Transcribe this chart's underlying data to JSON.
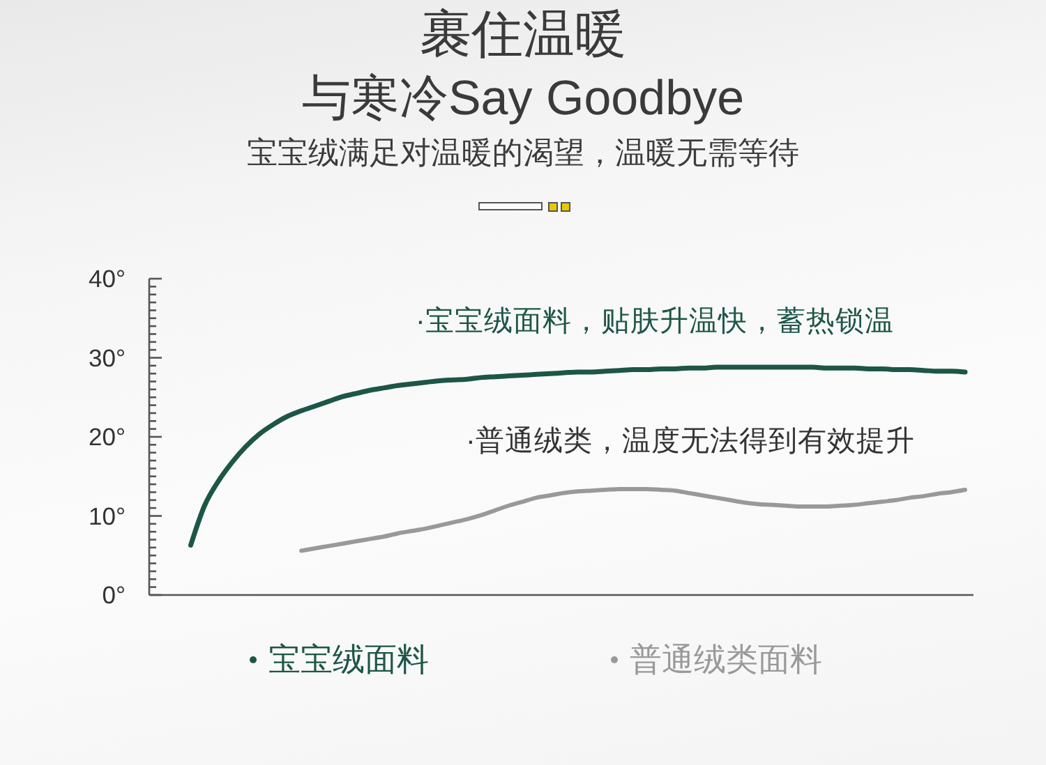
{
  "chart_data": {
    "type": "line",
    "title": "裹住温暖",
    "subtitle": "与寒冷Say Goodbye",
    "annotations": [
      "宝宝绒满足对温暖的渴望，温暖无需等待",
      "·宝宝绒面料，贴肤升温快，蓄热锁温",
      "·普通绒类，温度无法得到有效提升"
    ],
    "categories": [
      null,
      null,
      null,
      null,
      null,
      null,
      null,
      null,
      null,
      null,
      null,
      null,
      null,
      null,
      null,
      null,
      null,
      null,
      null,
      null,
      null,
      null,
      null,
      null,
      null,
      null,
      null,
      null,
      null,
      null,
      null,
      null,
      null,
      null,
      null,
      null,
      null,
      null,
      null,
      null,
      null,
      null,
      null,
      null,
      null,
      null,
      null,
      null,
      null,
      null,
      null,
      null,
      null,
      null,
      null,
      null,
      null,
      null,
      null,
      null
    ],
    "series": [
      {
        "name": "宝宝绒面料",
        "color": "#1d5646",
        "values": [
          null,
          null,
          null,
          6.3,
          11.3,
          14.4,
          16.8,
          18.8,
          20.4,
          21.6,
          22.6,
          23.3,
          23.9,
          24.5,
          25.1,
          25.5,
          25.9,
          26.2,
          26.5,
          26.7,
          26.9,
          27.1,
          27.2,
          27.3,
          27.5,
          27.6,
          27.7,
          27.8,
          27.9,
          28.0,
          28.1,
          28.2,
          28.2,
          28.3,
          28.4,
          28.5,
          28.5,
          28.6,
          28.6,
          28.7,
          28.7,
          28.8,
          28.8,
          28.8,
          28.8,
          28.8,
          28.8,
          28.8,
          28.8,
          28.7,
          28.7,
          28.7,
          28.6,
          28.6,
          28.5,
          28.5,
          28.4,
          28.3,
          28.3,
          28.2
        ]
      },
      {
        "name": "普通绒类面料",
        "color": "#999999",
        "values": [
          null,
          null,
          null,
          null,
          null,
          null,
          null,
          null,
          null,
          null,
          null,
          5.6,
          5.9,
          6.2,
          6.5,
          6.8,
          7.1,
          7.4,
          7.8,
          8.1,
          8.4,
          8.8,
          9.2,
          9.6,
          10.1,
          10.7,
          11.3,
          11.8,
          12.3,
          12.6,
          12.9,
          13.1,
          13.2,
          13.3,
          13.4,
          13.4,
          13.4,
          13.3,
          13.2,
          12.9,
          12.6,
          12.3,
          12.0,
          11.7,
          11.5,
          11.4,
          11.3,
          11.2,
          11.2,
          11.2,
          11.3,
          11.4,
          11.6,
          11.8,
          12.0,
          12.3,
          12.5,
          12.8,
          13.0,
          13.3
        ]
      }
    ],
    "ylim": [
      0,
      40
    ],
    "yticks": [
      {
        "value": 0,
        "label": "0°"
      },
      {
        "value": 1,
        "label": null
      },
      {
        "value": 2,
        "label": null
      },
      {
        "value": 3,
        "label": null
      },
      {
        "value": 4,
        "label": null
      },
      {
        "value": 5,
        "label": null
      },
      {
        "value": 6,
        "label": null
      },
      {
        "value": 7,
        "label": null
      },
      {
        "value": 8,
        "label": null
      },
      {
        "value": 9,
        "label": null
      },
      {
        "value": 10,
        "label": "10°"
      },
      {
        "value": 11,
        "label": null
      },
      {
        "value": 12,
        "label": null
      },
      {
        "value": 13,
        "label": null
      },
      {
        "value": 14,
        "label": null
      },
      {
        "value": 15,
        "label": null
      },
      {
        "value": 16,
        "label": null
      },
      {
        "value": 17,
        "label": null
      },
      {
        "value": 18,
        "label": null
      },
      {
        "value": 19,
        "label": null
      },
      {
        "value": 20,
        "label": "20°"
      },
      {
        "value": 21,
        "label": null
      },
      {
        "value": 22,
        "label": null
      },
      {
        "value": 23,
        "label": null
      },
      {
        "value": 24,
        "label": null
      },
      {
        "value": 25,
        "label": null
      },
      {
        "value": 26,
        "label": null
      },
      {
        "value": 27,
        "label": null
      },
      {
        "value": 28,
        "label": null
      },
      {
        "value": 29,
        "label": null
      },
      {
        "value": 30,
        "label": "30°"
      },
      {
        "value": 31,
        "label": null
      },
      {
        "value": 32,
        "label": null
      },
      {
        "value": 33,
        "label": null
      },
      {
        "value": 34,
        "label": null
      },
      {
        "value": 35,
        "label": null
      },
      {
        "value": 36,
        "label": null
      },
      {
        "value": 37,
        "label": null
      },
      {
        "value": 38,
        "label": null
      },
      {
        "value": 39,
        "label": null
      },
      {
        "value": 40,
        "label": "40°"
      }
    ],
    "legend": "bottom"
  }
}
